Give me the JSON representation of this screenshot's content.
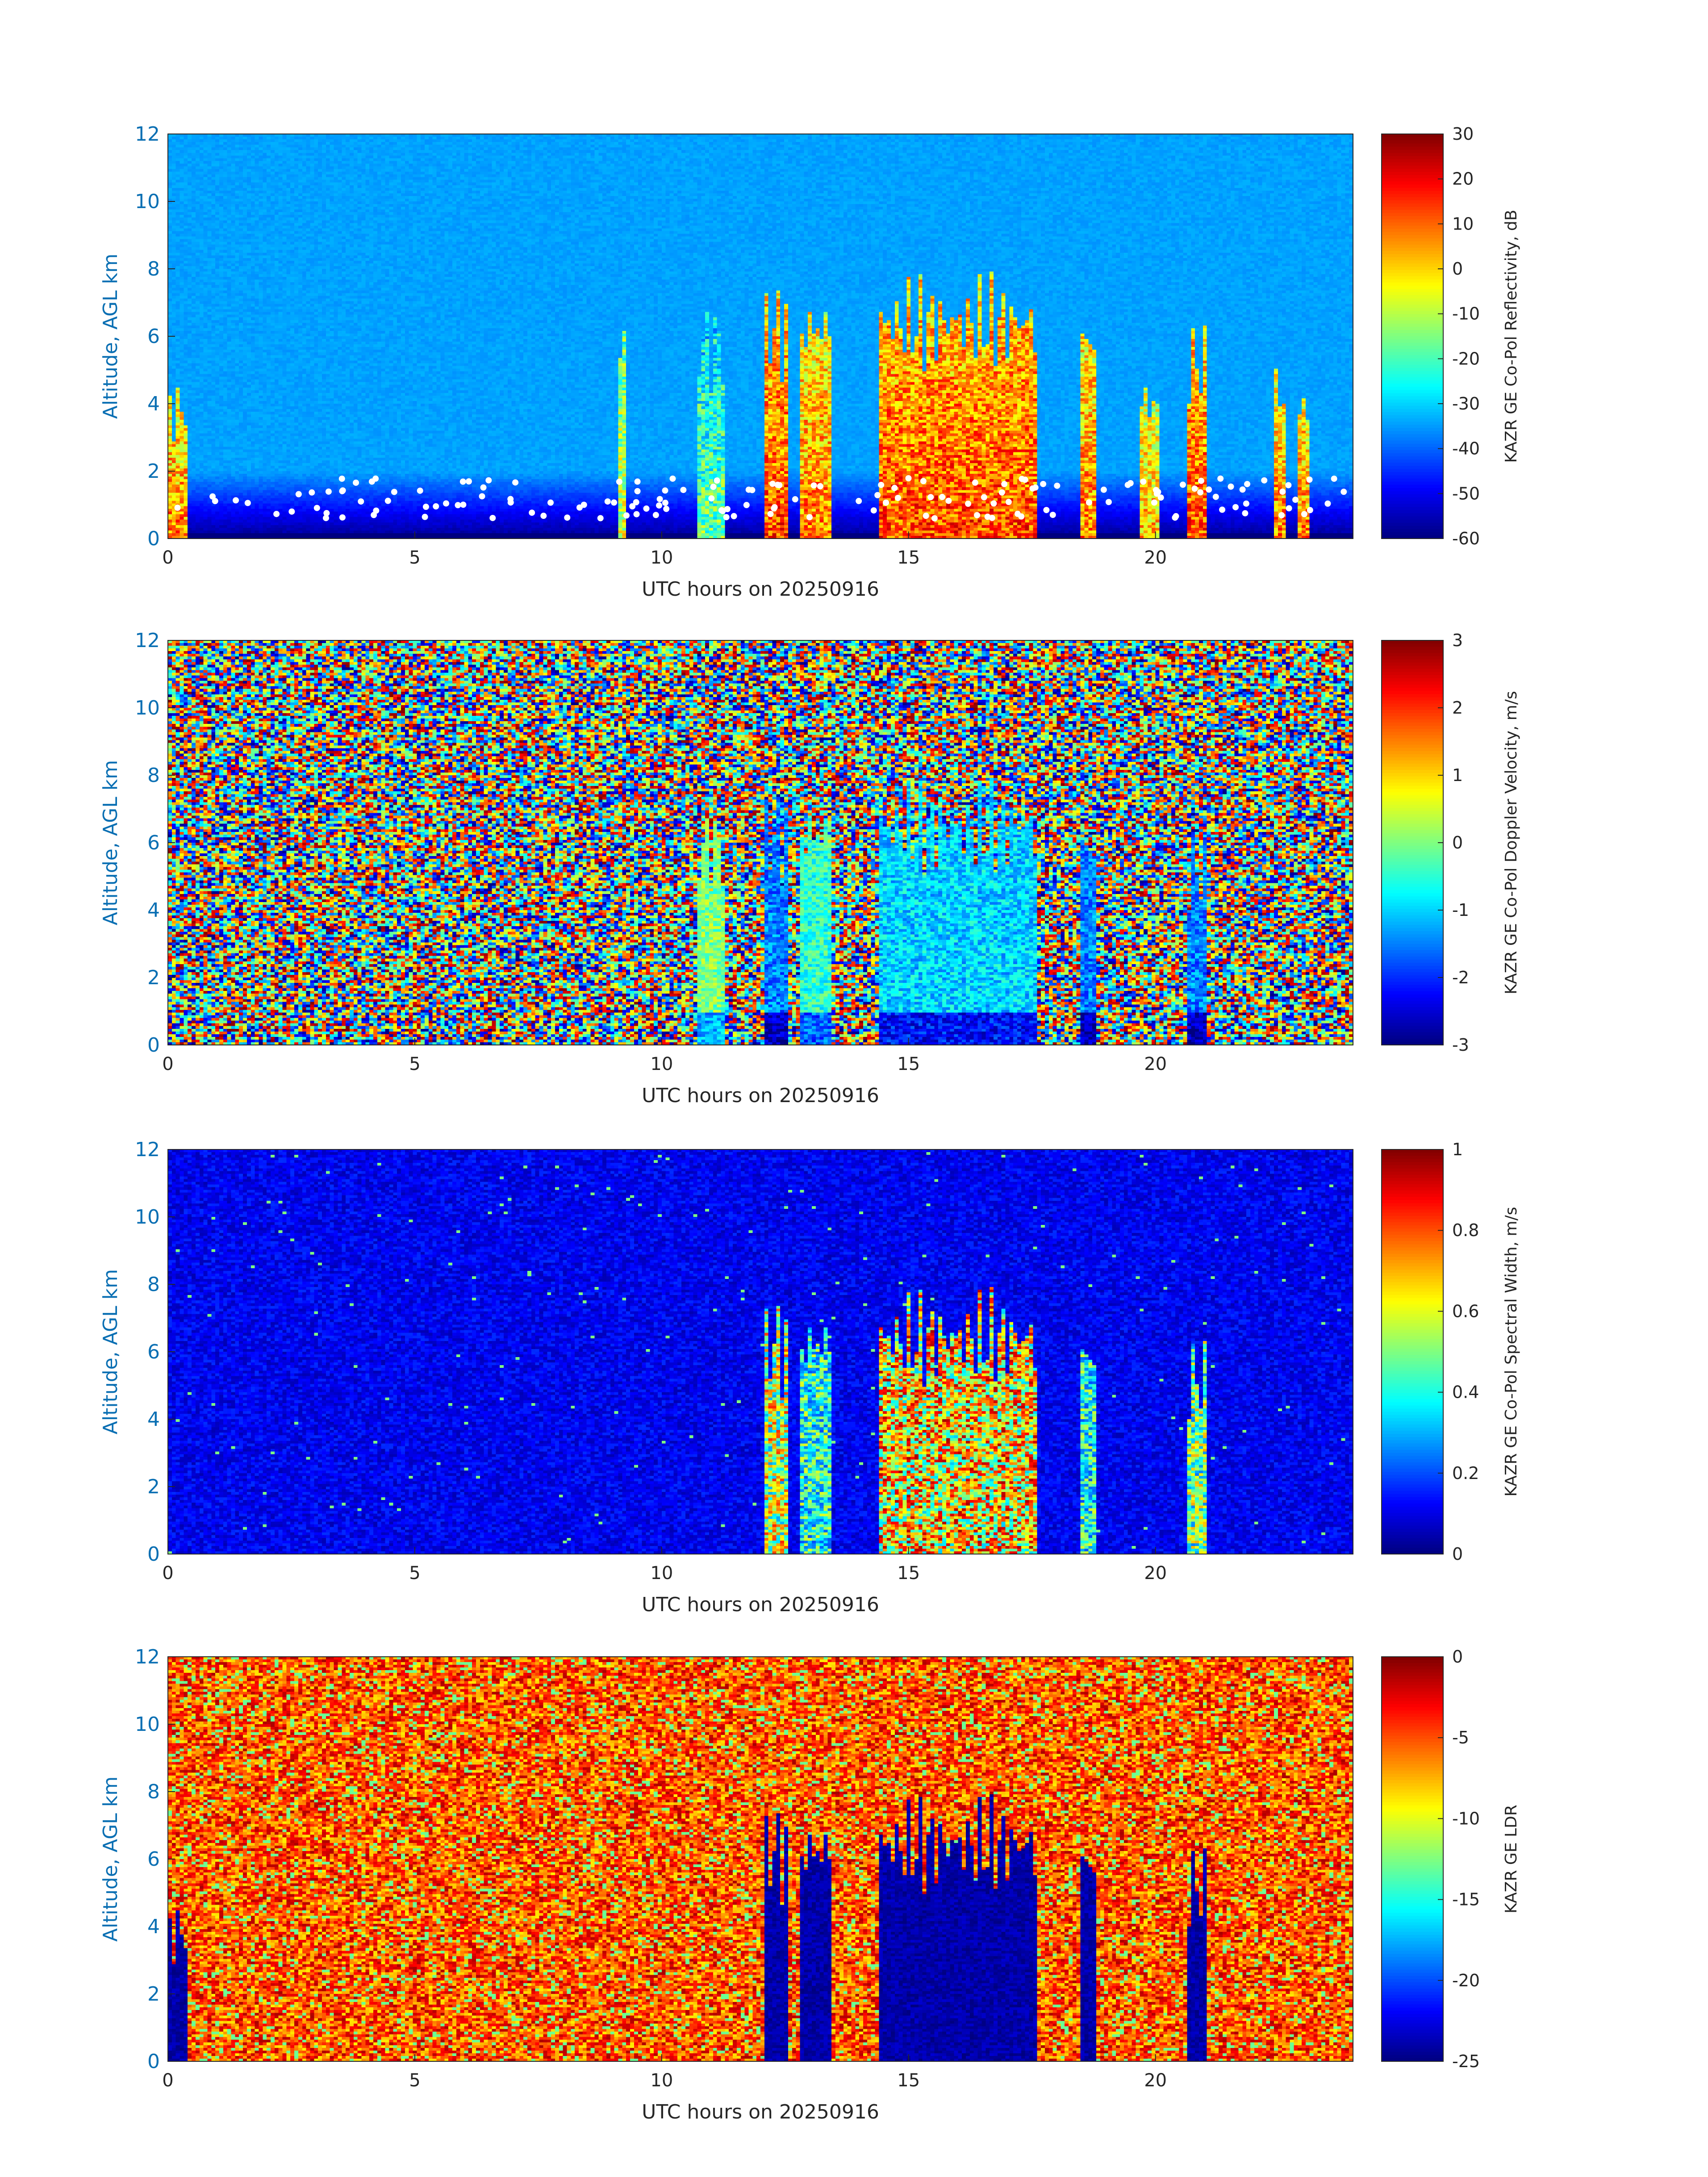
{
  "chart_data": [
    {
      "type": "heatmap",
      "id": "reflectivity",
      "xlabel": "UTC hours on 20250916",
      "ylabel": "Altitude, AGL km",
      "xlim": [
        0,
        24
      ],
      "ylim": [
        0,
        12
      ],
      "xticks": [
        "0",
        "5",
        "10",
        "15",
        "20"
      ],
      "yticks": [
        "0",
        "2",
        "4",
        "6",
        "8",
        "10",
        "12"
      ],
      "colorbar": {
        "label": "KAZR GE Co-Pol Reflectivity, dB",
        "ticks": [
          "30",
          "20",
          "10",
          "0",
          "-10",
          "-20",
          "-30",
          "-40",
          "-50",
          "-60"
        ],
        "range": [
          -60,
          30
        ],
        "colormap": "jet"
      },
      "background": "altitude gradient near -35 dB aloft to -60 dB near surface",
      "markers": "white dots marking cloud base heights ~0.5-2 km",
      "features": [
        {
          "t_start": 0.0,
          "t_end": 0.4,
          "top_km": 3.8,
          "value": 5
        },
        {
          "t_start": 9.1,
          "t_end": 9.3,
          "top_km": 5.5,
          "value": -10
        },
        {
          "t_start": 10.7,
          "t_end": 11.3,
          "top_km": 5.8,
          "value": -20
        },
        {
          "t_start": 12.1,
          "t_end": 12.6,
          "top_km": 6.2,
          "value": 10
        },
        {
          "t_start": 12.8,
          "t_end": 13.4,
          "top_km": 6.2,
          "value": 5
        },
        {
          "t_start": 14.4,
          "t_end": 17.6,
          "top_km": 6.4,
          "value": 10
        },
        {
          "t_start": 18.5,
          "t_end": 18.8,
          "top_km": 5.8,
          "value": 5
        },
        {
          "t_start": 19.7,
          "t_end": 20.1,
          "top_km": 4.0,
          "value": 0
        },
        {
          "t_start": 20.6,
          "t_end": 21.0,
          "top_km": 5.2,
          "value": 10
        },
        {
          "t_start": 22.4,
          "t_end": 22.6,
          "top_km": 4.2,
          "value": 5
        },
        {
          "t_start": 22.9,
          "t_end": 23.1,
          "top_km": 3.8,
          "value": 5
        }
      ]
    },
    {
      "type": "heatmap",
      "id": "doppler_velocity",
      "xlabel": "UTC hours on 20250916",
      "ylabel": "Altitude, AGL km",
      "xlim": [
        0,
        24
      ],
      "ylim": [
        0,
        12
      ],
      "xticks": [
        "0",
        "5",
        "10",
        "15",
        "20"
      ],
      "yticks": [
        "0",
        "2",
        "4",
        "6",
        "8",
        "10",
        "12"
      ],
      "colorbar": {
        "label": "KAZR GE Co-Pol Doppler Velocity, m/s",
        "ticks": [
          "3",
          "2",
          "1",
          "0",
          "-1",
          "-2",
          "-3"
        ],
        "range": [
          -3,
          3
        ],
        "colormap": "jet"
      },
      "background": "random noise across full range",
      "features": [
        {
          "t_start": 10.7,
          "t_end": 11.3,
          "top_km": 5.8,
          "value": 0
        },
        {
          "t_start": 12.1,
          "t_end": 12.6,
          "top_km": 6.2,
          "value": -1.5
        },
        {
          "t_start": 12.8,
          "t_end": 13.4,
          "top_km": 6.2,
          "value": -0.5
        },
        {
          "t_start": 14.4,
          "t_end": 17.6,
          "top_km": 6.4,
          "value": -1.0
        },
        {
          "t_start": 18.5,
          "t_end": 18.8,
          "top_km": 5.8,
          "value": -1.5
        },
        {
          "t_start": 20.6,
          "t_end": 21.0,
          "top_km": 5.2,
          "value": -1.5
        }
      ]
    },
    {
      "type": "heatmap",
      "id": "spectral_width",
      "xlabel": "UTC hours on 20250916",
      "ylabel": "Altitude, AGL km",
      "xlim": [
        0,
        24
      ],
      "ylim": [
        0,
        12
      ],
      "xticks": [
        "0",
        "5",
        "10",
        "15",
        "20"
      ],
      "yticks": [
        "0",
        "2",
        "4",
        "6",
        "8",
        "10",
        "12"
      ],
      "colorbar": {
        "label": "KAZR GE Co-Pol Spectral Width, m/s",
        "ticks": [
          "1",
          "0.8",
          "0.6",
          "0.4",
          "0.2",
          "0"
        ],
        "range": [
          0,
          1
        ],
        "colormap": "jet"
      },
      "background": "low values near 0.1 m/s",
      "features": [
        {
          "t_start": 12.1,
          "t_end": 12.6,
          "top_km": 6.2,
          "value": 0.7
        },
        {
          "t_start": 12.8,
          "t_end": 13.4,
          "top_km": 6.2,
          "value": 0.5
        },
        {
          "t_start": 14.4,
          "t_end": 17.6,
          "top_km": 6.4,
          "value": 0.8
        },
        {
          "t_start": 18.5,
          "t_end": 18.8,
          "top_km": 5.8,
          "value": 0.5
        },
        {
          "t_start": 20.6,
          "t_end": 21.0,
          "top_km": 5.2,
          "value": 0.6
        }
      ]
    },
    {
      "type": "heatmap",
      "id": "ldr",
      "xlabel": "UTC hours on 20250916",
      "ylabel": "Altitude, AGL km",
      "xlim": [
        0,
        24
      ],
      "ylim": [
        0,
        12
      ],
      "xticks": [
        "0",
        "5",
        "10",
        "15",
        "20"
      ],
      "yticks": [
        "0",
        "2",
        "4",
        "6",
        "8",
        "10",
        "12"
      ],
      "colorbar": {
        "label": "KAZR GE LDR",
        "ticks": [
          "0",
          "-5",
          "-10",
          "-15",
          "-20",
          "-25"
        ],
        "range": [
          -25,
          0
        ],
        "colormap": "jet"
      },
      "background": "noise near -5 dB",
      "features": [
        {
          "t_start": 0.0,
          "t_end": 0.4,
          "top_km": 3.8,
          "value": -25
        },
        {
          "t_start": 12.1,
          "t_end": 12.6,
          "top_km": 6.2,
          "value": -25
        },
        {
          "t_start": 12.8,
          "t_end": 13.4,
          "top_km": 6.2,
          "value": -25
        },
        {
          "t_start": 14.4,
          "t_end": 17.6,
          "top_km": 6.4,
          "value": -25
        },
        {
          "t_start": 18.5,
          "t_end": 18.8,
          "top_km": 5.8,
          "value": -25
        },
        {
          "t_start": 20.6,
          "t_end": 21.0,
          "top_km": 5.2,
          "value": -25
        }
      ]
    }
  ]
}
